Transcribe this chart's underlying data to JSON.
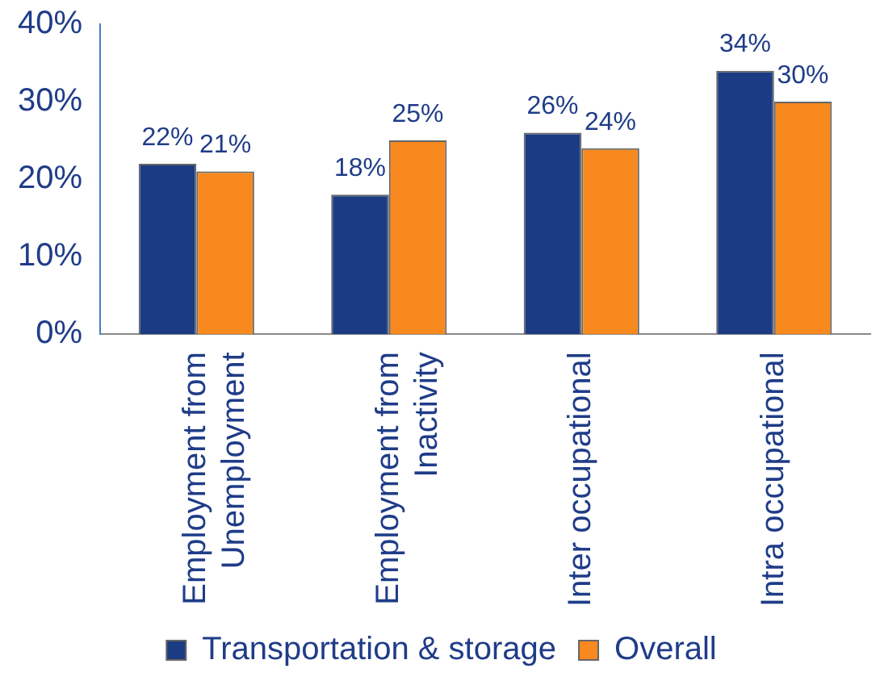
{
  "chart_data": {
    "type": "bar",
    "categories": [
      "Employment from Unemployment",
      "Employment from Inactivity",
      "Inter occupational",
      "Intra occupational"
    ],
    "series": [
      {
        "name": "Transportation & storage",
        "color": "#1b3c84",
        "values": [
          22,
          18,
          26,
          34
        ],
        "value_labels": [
          "22%",
          "18%",
          "26%",
          "34%"
        ]
      },
      {
        "name": "Overall",
        "color": "#f7891f",
        "values": [
          21,
          25,
          24,
          30
        ],
        "value_labels": [
          "21%",
          "25%",
          "24%",
          "30%"
        ]
      }
    ],
    "ylim": [
      0,
      40
    ],
    "yticks": [
      {
        "value": 0,
        "label": "0%"
      },
      {
        "value": 10,
        "label": "10%"
      },
      {
        "value": 20,
        "label": "20%"
      },
      {
        "value": 30,
        "label": "30%"
      },
      {
        "value": 40,
        "label": "40%"
      }
    ],
    "grid": false,
    "legend": "bottom"
  }
}
